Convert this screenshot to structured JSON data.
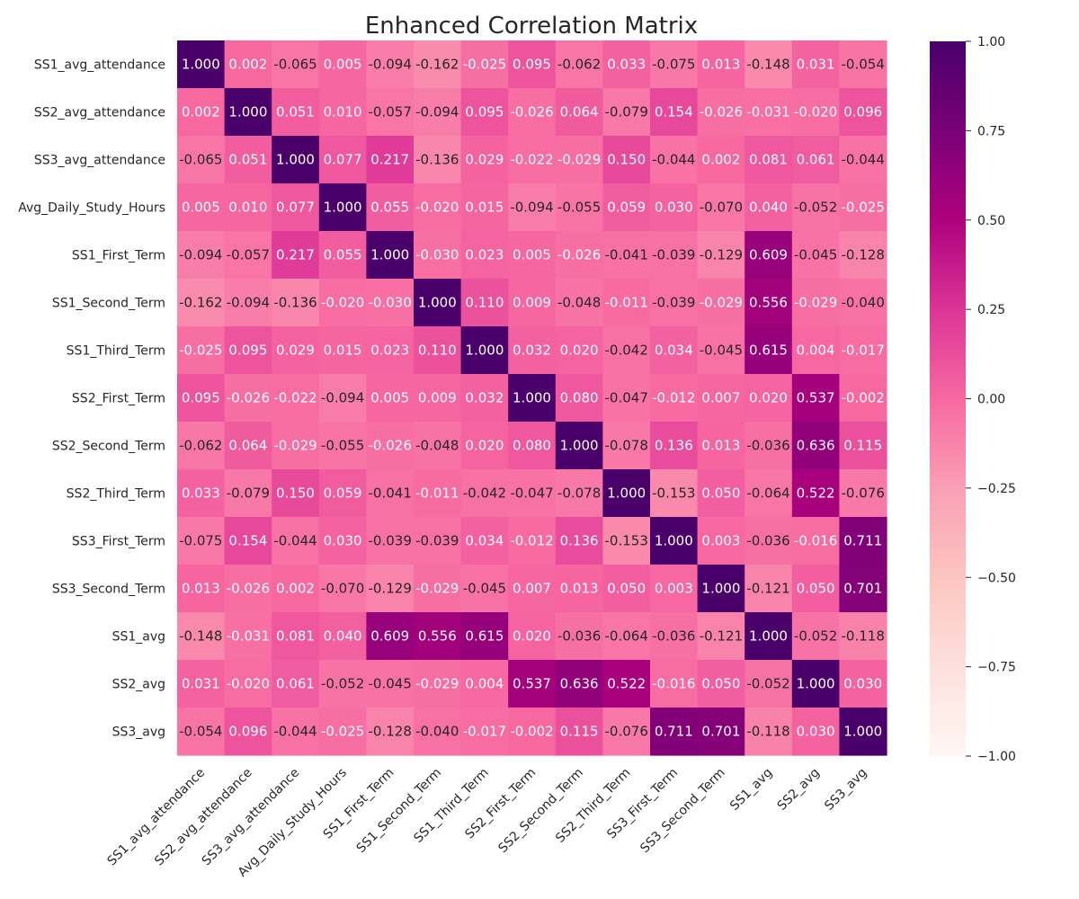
{
  "chart_data": {
    "type": "heatmap",
    "title": "Enhanced Correlation Matrix",
    "labels": [
      "SS1_avg_attendance",
      "SS2_avg_attendance",
      "SS3_avg_attendance",
      "Avg_Daily_Study_Hours",
      "SS1_First_Term",
      "SS1_Second_Term",
      "SS1_Third_Term",
      "SS2_First_Term",
      "SS2_Second_Term",
      "SS2_Third_Term",
      "SS3_First_Term",
      "SS3_Second_Term",
      "SS1_avg",
      "SS2_avg",
      "SS3_avg"
    ],
    "matrix": [
      [
        1.0,
        0.002,
        -0.065,
        0.005,
        -0.094,
        -0.162,
        -0.025,
        0.095,
        -0.062,
        0.033,
        -0.075,
        0.013,
        -0.148,
        0.031,
        -0.054
      ],
      [
        0.002,
        1.0,
        0.051,
        0.01,
        -0.057,
        -0.094,
        0.095,
        -0.026,
        0.064,
        -0.079,
        0.154,
        -0.026,
        -0.031,
        -0.02,
        0.096
      ],
      [
        -0.065,
        0.051,
        1.0,
        0.077,
        0.217,
        -0.136,
        0.029,
        -0.022,
        -0.029,
        0.15,
        -0.044,
        0.002,
        0.081,
        0.061,
        -0.044
      ],
      [
        0.005,
        0.01,
        0.077,
        1.0,
        0.055,
        -0.02,
        0.015,
        -0.094,
        -0.055,
        0.059,
        0.03,
        -0.07,
        0.04,
        -0.052,
        -0.025
      ],
      [
        -0.094,
        -0.057,
        0.217,
        0.055,
        1.0,
        -0.03,
        0.023,
        0.005,
        -0.026,
        -0.041,
        -0.039,
        -0.129,
        0.609,
        -0.045,
        -0.128
      ],
      [
        -0.162,
        -0.094,
        -0.136,
        -0.02,
        -0.03,
        1.0,
        0.11,
        0.009,
        -0.048,
        -0.011,
        -0.039,
        -0.029,
        0.556,
        -0.029,
        -0.04
      ],
      [
        -0.025,
        0.095,
        0.029,
        0.015,
        0.023,
        0.11,
        1.0,
        0.032,
        0.02,
        -0.042,
        0.034,
        -0.045,
        0.615,
        0.004,
        -0.017
      ],
      [
        0.095,
        -0.026,
        -0.022,
        -0.094,
        0.005,
        0.009,
        0.032,
        1.0,
        0.08,
        -0.047,
        -0.012,
        0.007,
        0.02,
        0.537,
        -0.002
      ],
      [
        -0.062,
        0.064,
        -0.029,
        -0.055,
        -0.026,
        -0.048,
        0.02,
        0.08,
        1.0,
        -0.078,
        0.136,
        0.013,
        -0.036,
        0.636,
        0.115
      ],
      [
        0.033,
        -0.079,
        0.15,
        0.059,
        -0.041,
        -0.011,
        -0.042,
        -0.047,
        -0.078,
        1.0,
        -0.153,
        0.05,
        -0.064,
        0.522,
        -0.076
      ],
      [
        -0.075,
        0.154,
        -0.044,
        0.03,
        -0.039,
        -0.039,
        0.034,
        -0.012,
        0.136,
        -0.153,
        1.0,
        0.003,
        -0.036,
        -0.016,
        0.711
      ],
      [
        0.013,
        -0.026,
        0.002,
        -0.07,
        -0.129,
        -0.029,
        -0.045,
        0.007,
        0.013,
        0.05,
        0.003,
        1.0,
        -0.121,
        0.05,
        0.701
      ],
      [
        -0.148,
        -0.031,
        0.081,
        0.04,
        0.609,
        0.556,
        0.615,
        0.02,
        -0.036,
        -0.064,
        -0.036,
        -0.121,
        1.0,
        -0.052,
        -0.118
      ],
      [
        0.031,
        -0.02,
        0.061,
        -0.052,
        -0.045,
        -0.029,
        0.004,
        0.537,
        0.636,
        0.522,
        -0.016,
        0.05,
        -0.052,
        1.0,
        0.03
      ],
      [
        -0.054,
        0.096,
        -0.044,
        -0.025,
        -0.128,
        -0.04,
        -0.017,
        -0.002,
        0.115,
        -0.076,
        0.711,
        0.701,
        -0.118,
        0.03,
        1.0
      ]
    ],
    "value_range": [
      -1.0,
      1.0
    ],
    "colormap": "RdPu",
    "colormap_stops": [
      "#fff7f3",
      "#fde0dd",
      "#fcc5c0",
      "#fa9fb5",
      "#f768a1",
      "#dd3497",
      "#ae017e",
      "#7a0177",
      "#49006a"
    ],
    "colorbar_ticks": [
      "1.00",
      "0.75",
      "0.50",
      "0.25",
      "0.00",
      "−0.25",
      "−0.50",
      "−0.75",
      "−1.00"
    ],
    "grid": false
  }
}
